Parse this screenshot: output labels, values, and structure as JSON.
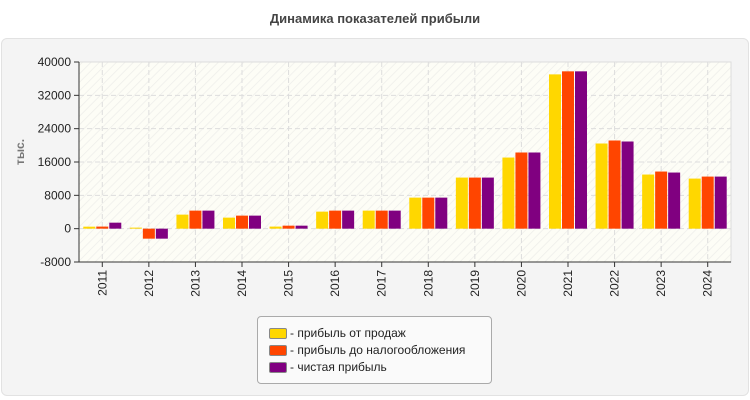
{
  "chart_data": {
    "type": "bar",
    "title": "Динамика показателей прибыли",
    "ylabel": "тыс.",
    "xlabel": "",
    "ylim": [
      -8000,
      40000
    ],
    "yticks": [
      "40000",
      "32000",
      "24000",
      "16000",
      "8000",
      "0",
      "-8000"
    ],
    "grid": true,
    "legend_position": "bottom",
    "categories": [
      "2011",
      "2012",
      "2013",
      "2014",
      "2015",
      "2016",
      "2017",
      "2018",
      "2019",
      "2020",
      "2021",
      "2022",
      "2023",
      "2024"
    ],
    "series": [
      {
        "name": "- прибыль от продаж",
        "color": "#FFD700",
        "values": [
          480,
          250,
          3370,
          2650,
          500,
          4090,
          4330,
          7450,
          12260,
          17070,
          37030,
          20440,
          12990,
          12020
        ]
      },
      {
        "name": "- прибыль до налогообложения",
        "color": "#FF4500",
        "values": [
          500,
          -2400,
          4330,
          3130,
          720,
          4330,
          4330,
          7450,
          12260,
          18280,
          37760,
          21160,
          13710,
          12500
        ]
      },
      {
        "name": "- чистая прибыль",
        "color": "#800080",
        "values": [
          1440,
          -2400,
          4330,
          3130,
          720,
          4330,
          4330,
          7450,
          12260,
          18280,
          37760,
          20920,
          13470,
          12500
        ]
      }
    ]
  }
}
